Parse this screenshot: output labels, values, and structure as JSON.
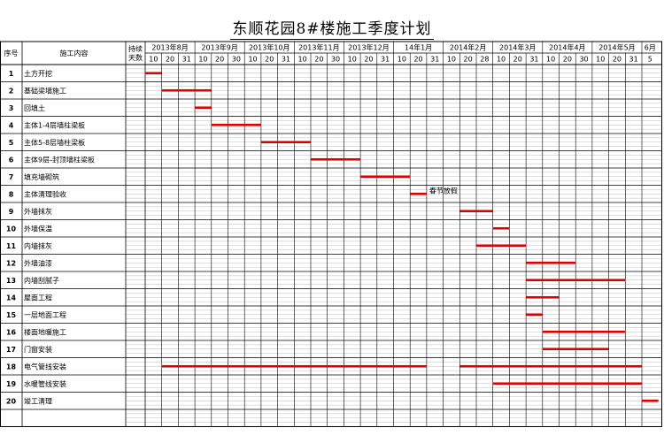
{
  "title": "东顺花园8#楼施工季度计划",
  "headers": {
    "seq": "序号",
    "content": "施工内容",
    "duration_line1": "持续",
    "duration_line2": "天数"
  },
  "months": [
    {
      "label": "2013年8月",
      "days": [
        "10",
        "20",
        "31"
      ]
    },
    {
      "label": "2013年9月",
      "days": [
        "10",
        "20",
        "30"
      ]
    },
    {
      "label": "2013年10月",
      "days": [
        "10",
        "20",
        "31"
      ]
    },
    {
      "label": "2013年11月",
      "days": [
        "10",
        "20",
        "30"
      ]
    },
    {
      "label": "2013年12月",
      "days": [
        "10",
        "20",
        "31"
      ]
    },
    {
      "label": "14年1月",
      "days": [
        "10",
        "20",
        "31"
      ]
    },
    {
      "label": "2014年2月",
      "days": [
        "10",
        "20",
        "28"
      ]
    },
    {
      "label": "2014年3月",
      "days": [
        "10",
        "20",
        "31"
      ]
    },
    {
      "label": "2014年4月",
      "days": [
        "10",
        "20",
        "30"
      ]
    },
    {
      "label": "2014年5月",
      "days": [
        "10",
        "20",
        "31"
      ]
    },
    {
      "label": "6月",
      "days": [
        "5"
      ]
    }
  ],
  "tasks": [
    {
      "no": "1",
      "name": "土方开挖",
      "bars": [
        [
          0,
          1
        ]
      ]
    },
    {
      "no": "2",
      "name": "基础梁墙施工",
      "bars": [
        [
          1,
          4
        ]
      ]
    },
    {
      "no": "3",
      "name": "回填土",
      "bars": [
        [
          3,
          4
        ]
      ]
    },
    {
      "no": "4",
      "name": "主体1-4层墙柱梁板",
      "bars": [
        [
          4,
          7
        ]
      ]
    },
    {
      "no": "5",
      "name": "主体5-8层墙柱梁板",
      "bars": [
        [
          7,
          10
        ]
      ]
    },
    {
      "no": "6",
      "name": "主体9层-封顶墙柱梁板",
      "bars": [
        [
          10,
          13
        ]
      ]
    },
    {
      "no": "7",
      "name": "填充墙砌筑",
      "bars": [
        [
          13,
          16
        ]
      ]
    },
    {
      "no": "8",
      "name": "主体清理验收",
      "bars": [
        [
          16,
          17
        ]
      ],
      "note": "春节放假"
    },
    {
      "no": "9",
      "name": "外墙抹灰",
      "bars": [
        [
          19,
          21
        ]
      ]
    },
    {
      "no": "10",
      "name": "外墙保温",
      "bars": [
        [
          21,
          22
        ]
      ]
    },
    {
      "no": "11",
      "name": "内墙抹灰",
      "bars": [
        [
          20,
          23
        ]
      ]
    },
    {
      "no": "12",
      "name": "外墙油漆",
      "bars": [
        [
          23,
          26
        ]
      ]
    },
    {
      "no": "13",
      "name": "内墙刮腻子",
      "bars": [
        [
          23,
          29
        ]
      ]
    },
    {
      "no": "14",
      "name": "屋面工程",
      "bars": [
        [
          23,
          25
        ]
      ]
    },
    {
      "no": "15",
      "name": "一层地面工程",
      "bars": [
        [
          23,
          24
        ]
      ]
    },
    {
      "no": "16",
      "name": "楼面地暖施工",
      "bars": [
        [
          24,
          29
        ]
      ]
    },
    {
      "no": "17",
      "name": "门窗安装",
      "bars": [
        [
          24,
          28
        ]
      ]
    },
    {
      "no": "18",
      "name": "电气管线安装",
      "bars": [
        [
          1,
          17
        ],
        [
          19,
          30
        ]
      ]
    },
    {
      "no": "19",
      "name": "水暖管线安装",
      "bars": [
        [
          21,
          30
        ]
      ]
    },
    {
      "no": "20",
      "name": "竣工清理",
      "bars": [
        [
          30,
          31
        ]
      ]
    }
  ],
  "colors": {
    "bar": "#e00000",
    "grid": "#000000",
    "subgrid": "#bdbdbd"
  }
}
